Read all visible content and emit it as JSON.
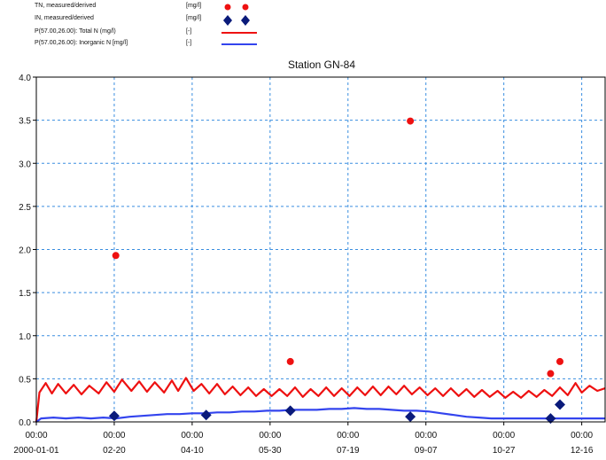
{
  "legend": [
    {
      "label": "TN, measured/derived",
      "unit": "[mg/l]",
      "color": "#ee1111",
      "marker": "circle"
    },
    {
      "label": "IN, measured/derived",
      "unit": "[mg/l]",
      "color": "#0a1a7a",
      "marker": "diamond"
    },
    {
      "label": "P(57.00,26.00): Total N (mg/l)",
      "unit": "[-]",
      "color": "#ee1111",
      "marker": "line"
    },
    {
      "label": "P(57.00,26.00): Inorganic N [mg/l]",
      "unit": "[-]",
      "color": "#3344ee",
      "marker": "line"
    }
  ],
  "chart_data": {
    "type": "line",
    "title": "Station GN-84",
    "xlabel": "",
    "ylabel": "",
    "ylim": [
      0,
      4.0
    ],
    "yticks": [
      0.0,
      0.5,
      1.0,
      1.5,
      2.0,
      2.5,
      3.0,
      3.5,
      4.0
    ],
    "ytick_labels": [
      "0.0",
      "0.5",
      "1.0",
      "1.5",
      "2.0",
      "2.5",
      "3.0",
      "3.5",
      "4.0"
    ],
    "xlim": [
      "2000-01-01",
      "2000-12-31"
    ],
    "xticks": [
      {
        "date": "2000-01-01",
        "time": "00:00",
        "label": "2000-01-01"
      },
      {
        "date": "2000-02-20",
        "time": "00:00",
        "label": "02-20"
      },
      {
        "date": "2000-04-10",
        "time": "00:00",
        "label": "04-10"
      },
      {
        "date": "2000-05-30",
        "time": "00:00",
        "label": "05-30"
      },
      {
        "date": "2000-07-19",
        "time": "00:00",
        "label": "07-19"
      },
      {
        "date": "2000-09-07",
        "time": "00:00",
        "label": "09-07"
      },
      {
        "date": "2000-10-27",
        "time": "00:00",
        "label": "10-27"
      },
      {
        "date": "2000-12-16",
        "time": "00:00",
        "label": "12-16"
      }
    ],
    "grid": true,
    "series": [
      {
        "name": "TN, measured/derived",
        "type": "scatter",
        "marker": "circle",
        "color": "#ee1111",
        "points": [
          [
            "2000-02-21",
            1.93
          ],
          [
            "2000-06-12",
            0.7
          ],
          [
            "2000-08-28",
            3.49
          ],
          [
            "2000-11-26",
            0.56
          ],
          [
            "2000-12-02",
            0.7
          ]
        ]
      },
      {
        "name": "IN, measured/derived",
        "type": "scatter",
        "marker": "diamond",
        "color": "#0a1a7a",
        "points": [
          [
            "2000-02-20",
            0.07
          ],
          [
            "2000-04-19",
            0.08
          ],
          [
            "2000-06-12",
            0.13
          ],
          [
            "2000-08-28",
            0.06
          ],
          [
            "2000-11-26",
            0.04
          ],
          [
            "2000-12-02",
            0.2
          ]
        ]
      },
      {
        "name": "P(57.00,26.00): Total N (mg/l)",
        "type": "line",
        "color": "#ee1111",
        "points": [
          [
            "2000-01-01",
            0.0
          ],
          [
            "2000-01-03",
            0.34
          ],
          [
            "2000-01-07",
            0.45
          ],
          [
            "2000-01-11",
            0.33
          ],
          [
            "2000-01-15",
            0.44
          ],
          [
            "2000-01-20",
            0.33
          ],
          [
            "2000-01-25",
            0.43
          ],
          [
            "2000-01-30",
            0.32
          ],
          [
            "2000-02-04",
            0.42
          ],
          [
            "2000-02-10",
            0.33
          ],
          [
            "2000-02-15",
            0.46
          ],
          [
            "2000-02-20",
            0.35
          ],
          [
            "2000-02-25",
            0.49
          ],
          [
            "2000-03-02",
            0.36
          ],
          [
            "2000-03-07",
            0.47
          ],
          [
            "2000-03-12",
            0.35
          ],
          [
            "2000-03-17",
            0.46
          ],
          [
            "2000-03-23",
            0.34
          ],
          [
            "2000-03-28",
            0.48
          ],
          [
            "2000-04-01",
            0.36
          ],
          [
            "2000-04-06",
            0.51
          ],
          [
            "2000-04-11",
            0.36
          ],
          [
            "2000-04-16",
            0.44
          ],
          [
            "2000-04-21",
            0.33
          ],
          [
            "2000-04-26",
            0.44
          ],
          [
            "2000-05-01",
            0.32
          ],
          [
            "2000-05-06",
            0.41
          ],
          [
            "2000-05-11",
            0.31
          ],
          [
            "2000-05-16",
            0.4
          ],
          [
            "2000-05-21",
            0.3
          ],
          [
            "2000-05-26",
            0.38
          ],
          [
            "2000-05-31",
            0.3
          ],
          [
            "2000-06-05",
            0.38
          ],
          [
            "2000-06-10",
            0.3
          ],
          [
            "2000-06-15",
            0.4
          ],
          [
            "2000-06-20",
            0.29
          ],
          [
            "2000-06-25",
            0.38
          ],
          [
            "2000-06-30",
            0.3
          ],
          [
            "2000-07-05",
            0.4
          ],
          [
            "2000-07-10",
            0.3
          ],
          [
            "2000-07-15",
            0.39
          ],
          [
            "2000-07-20",
            0.3
          ],
          [
            "2000-07-25",
            0.4
          ],
          [
            "2000-07-30",
            0.31
          ],
          [
            "2000-08-04",
            0.41
          ],
          [
            "2000-08-09",
            0.31
          ],
          [
            "2000-08-14",
            0.41
          ],
          [
            "2000-08-19",
            0.32
          ],
          [
            "2000-08-24",
            0.42
          ],
          [
            "2000-08-29",
            0.32
          ],
          [
            "2000-09-03",
            0.4
          ],
          [
            "2000-09-08",
            0.31
          ],
          [
            "2000-09-13",
            0.39
          ],
          [
            "2000-09-18",
            0.3
          ],
          [
            "2000-09-23",
            0.39
          ],
          [
            "2000-09-28",
            0.3
          ],
          [
            "2000-10-03",
            0.38
          ],
          [
            "2000-10-08",
            0.29
          ],
          [
            "2000-10-13",
            0.37
          ],
          [
            "2000-10-18",
            0.29
          ],
          [
            "2000-10-23",
            0.36
          ],
          [
            "2000-10-28",
            0.28
          ],
          [
            "2000-11-02",
            0.35
          ],
          [
            "2000-11-07",
            0.28
          ],
          [
            "2000-11-12",
            0.36
          ],
          [
            "2000-11-17",
            0.29
          ],
          [
            "2000-11-22",
            0.37
          ],
          [
            "2000-11-27",
            0.3
          ],
          [
            "2000-12-02",
            0.4
          ],
          [
            "2000-12-07",
            0.31
          ],
          [
            "2000-12-12",
            0.45
          ],
          [
            "2000-12-16",
            0.34
          ],
          [
            "2000-12-21",
            0.42
          ],
          [
            "2000-12-26",
            0.36
          ],
          [
            "2000-12-31",
            0.39
          ]
        ]
      },
      {
        "name": "P(57.00,26.00): Inorganic N [mg/l]",
        "type": "line",
        "color": "#3344ee",
        "points": [
          [
            "2000-01-01",
            0.0
          ],
          [
            "2000-01-04",
            0.04
          ],
          [
            "2000-01-12",
            0.05
          ],
          [
            "2000-01-20",
            0.04
          ],
          [
            "2000-01-28",
            0.05
          ],
          [
            "2000-02-05",
            0.04
          ],
          [
            "2000-02-13",
            0.05
          ],
          [
            "2000-02-21",
            0.04
          ],
          [
            "2000-03-01",
            0.06
          ],
          [
            "2000-03-09",
            0.07
          ],
          [
            "2000-03-17",
            0.08
          ],
          [
            "2000-03-25",
            0.09
          ],
          [
            "2000-04-02",
            0.09
          ],
          [
            "2000-04-10",
            0.1
          ],
          [
            "2000-04-18",
            0.1
          ],
          [
            "2000-04-26",
            0.11
          ],
          [
            "2000-05-04",
            0.11
          ],
          [
            "2000-05-12",
            0.12
          ],
          [
            "2000-05-20",
            0.12
          ],
          [
            "2000-05-28",
            0.13
          ],
          [
            "2000-06-05",
            0.13
          ],
          [
            "2000-06-13",
            0.14
          ],
          [
            "2000-06-21",
            0.14
          ],
          [
            "2000-06-29",
            0.14
          ],
          [
            "2000-07-07",
            0.15
          ],
          [
            "2000-07-15",
            0.15
          ],
          [
            "2000-07-23",
            0.16
          ],
          [
            "2000-07-31",
            0.15
          ],
          [
            "2000-08-08",
            0.15
          ],
          [
            "2000-08-16",
            0.14
          ],
          [
            "2000-08-24",
            0.13
          ],
          [
            "2000-09-01",
            0.13
          ],
          [
            "2000-09-09",
            0.12
          ],
          [
            "2000-09-17",
            0.1
          ],
          [
            "2000-09-25",
            0.08
          ],
          [
            "2000-10-03",
            0.06
          ],
          [
            "2000-10-11",
            0.05
          ],
          [
            "2000-10-19",
            0.04
          ],
          [
            "2000-10-27",
            0.04
          ],
          [
            "2000-11-04",
            0.04
          ],
          [
            "2000-11-12",
            0.04
          ],
          [
            "2000-11-20",
            0.04
          ],
          [
            "2000-11-28",
            0.04
          ],
          [
            "2000-12-06",
            0.04
          ],
          [
            "2000-12-14",
            0.04
          ],
          [
            "2000-12-22",
            0.04
          ],
          [
            "2000-12-31",
            0.04
          ]
        ]
      }
    ]
  }
}
